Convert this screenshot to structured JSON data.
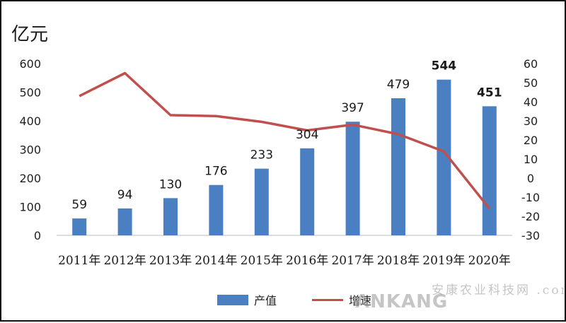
{
  "chart_data": {
    "type": "bar",
    "unit_label": "亿元",
    "categories": [
      "2011年",
      "2012年",
      "2013年",
      "2014年",
      "2015年",
      "2016年",
      "2017年",
      "2018年",
      "2019年",
      "2020年"
    ],
    "series": [
      {
        "name": "产值",
        "type": "bar",
        "axis": "left",
        "color": "#4a7fc1",
        "values": [
          59,
          94,
          130,
          176,
          233,
          304,
          397,
          479,
          544,
          451
        ]
      },
      {
        "name": "增速",
        "type": "line",
        "axis": "right",
        "color": "#c0504d",
        "values": [
          43,
          55,
          33,
          32.5,
          29.5,
          25,
          28,
          23,
          14,
          -16
        ]
      }
    ],
    "y_left": {
      "ylim": [
        0,
        600
      ],
      "ticks": [
        0,
        100,
        200,
        300,
        400,
        500,
        600
      ]
    },
    "y_right": {
      "ylim": [
        -30,
        60
      ],
      "ticks": [
        60,
        50,
        40,
        30,
        20,
        10,
        0,
        -10,
        -20,
        -30
      ]
    },
    "data_labels": [
      "59",
      "94",
      "130",
      "176",
      "233",
      "304",
      "397",
      "479",
      "544",
      "451"
    ],
    "bold_labels": [
      false,
      false,
      false,
      false,
      false,
      false,
      false,
      false,
      true,
      true
    ],
    "grid": false,
    "legend": "bottom"
  },
  "watermark": {
    "latin": "ANKANG",
    "cjk": "安康农业科技网 .com.cn"
  }
}
